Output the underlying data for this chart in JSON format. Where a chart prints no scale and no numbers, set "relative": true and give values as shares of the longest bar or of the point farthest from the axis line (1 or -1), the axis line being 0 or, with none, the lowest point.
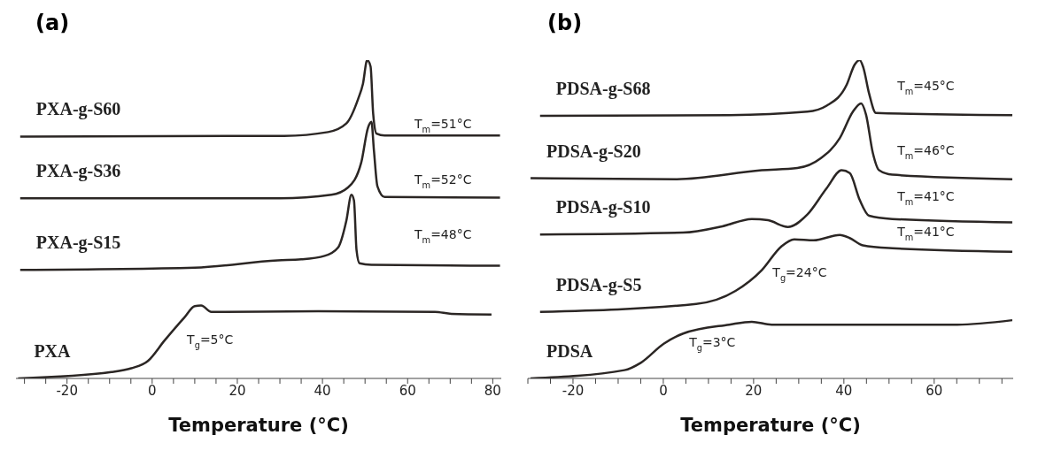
{
  "chart_data": [
    {
      "type": "line",
      "title": "(a)",
      "xlabel": "Temperature (°C)",
      "relative": true,
      "tick_labels": "x",
      "legend": false,
      "grid": false,
      "marker": "none",
      "line_style": "solid",
      "xlim": [
        -32,
        82
      ],
      "xticks": [
        {
          "value": -30,
          "label": null
        },
        {
          "value": -25,
          "label": null
        },
        -20,
        {
          "value": -15,
          "label": null
        },
        {
          "value": -10,
          "label": null
        },
        {
          "value": -5,
          "label": null
        },
        0,
        {
          "value": 5,
          "label": null
        },
        {
          "value": 10,
          "label": null
        },
        {
          "value": 15,
          "label": null
        },
        20,
        {
          "value": 25,
          "label": null
        },
        {
          "value": 30,
          "label": null
        },
        {
          "value": 35,
          "label": null
        },
        40,
        {
          "value": 45,
          "label": null
        },
        {
          "value": 50,
          "label": null
        },
        {
          "value": 55,
          "label": null
        },
        60,
        {
          "value": 65,
          "label": null
        },
        {
          "value": 70,
          "label": null
        },
        {
          "value": 75,
          "label": null
        },
        80
      ],
      "series": [
        {
          "name": "PXA-g-S60",
          "color": "#2b2624",
          "x": [
            -31,
            31,
            41.3,
            45.6,
            48.4,
            49.5,
            50.5,
            51.3,
            51.9,
            52.7,
            54.6,
            81.7
          ],
          "values": [
            0.76,
            0.762,
            0.774,
            0.801,
            0.879,
            0.925,
            1,
            0.98,
            0.833,
            0.769,
            0.763,
            0.763
          ]
        },
        {
          "name": "PXA-g-S36",
          "color": "#2b2624",
          "x": [
            -31,
            30,
            42.1,
            46,
            49.1,
            50.7,
            51.5,
            52.1,
            52.9,
            54.6,
            81.7
          ],
          "values": [
            0.566,
            0.566,
            0.577,
            0.6,
            0.678,
            0.788,
            0.806,
            0.714,
            0.604,
            0.57,
            0.568
          ]
        },
        {
          "name": "PXA-g-S15",
          "color": "#2b2624",
          "x": [
            -31,
            10,
            29.5,
            35,
            40.5,
            43.7,
            45.6,
            46.8,
            47.4,
            48,
            48.7,
            51.5,
            81.7
          ],
          "values": [
            0.341,
            0.348,
            0.371,
            0.374,
            0.385,
            0.412,
            0.495,
            0.577,
            0.559,
            0.403,
            0.362,
            0.357,
            0.354
          ]
        },
        {
          "name": "PXA",
          "color": "#2b2624",
          "x": [
            -31.5,
            -9.6,
            -4.9,
            -1,
            2.9,
            7.6,
            10,
            11.5,
            13.9,
            39,
            66.4,
            70.3,
            79.7
          ],
          "values": [
            0,
            0.02,
            0.032,
            0.055,
            0.119,
            0.192,
            0.227,
            0.229,
            0.209,
            0.211,
            0.209,
            0.203,
            0.201
          ]
        }
      ],
      "annotations": [
        "T$_{m}$=51°C",
        "T$_{m}$=52°C",
        "T$_{m}$=48°C",
        "T$_{g}$=5°C"
      ]
    },
    {
      "type": "line",
      "title": "(b)",
      "xlabel": "Temperature (°C)",
      "relative": true,
      "tick_labels": "x",
      "legend": false,
      "grid": false,
      "marker": "none",
      "line_style": "solid",
      "xlim": [
        -30,
        77.5
      ],
      "xticks": [
        {
          "value": -30,
          "label": null
        },
        {
          "value": -25,
          "label": null
        },
        -20,
        {
          "value": -15,
          "label": null
        },
        {
          "value": -10,
          "label": null
        },
        {
          "value": -5,
          "label": null
        },
        0,
        {
          "value": 5,
          "label": null
        },
        {
          "value": 10,
          "label": null
        },
        {
          "value": 15,
          "label": null
        },
        20,
        {
          "value": 25,
          "label": null
        },
        {
          "value": 30,
          "label": null
        },
        {
          "value": 35,
          "label": null
        },
        40,
        {
          "value": 45,
          "label": null
        },
        {
          "value": 50,
          "label": null
        },
        {
          "value": 55,
          "label": null
        },
        60,
        {
          "value": 65,
          "label": null
        },
        {
          "value": 70,
          "label": null
        },
        {
          "value": 75,
          "label": null
        }
      ],
      "series": [
        {
          "name": "PDSA-g-S68",
          "color": "#2b2624",
          "x": [
            -27.3,
            14.6,
            31.9,
            36.2,
            40.6,
            42.4,
            43.5,
            44.3,
            45.6,
            47.1,
            77.3
          ],
          "values": [
            0.825,
            0.827,
            0.838,
            0.857,
            0.922,
            0.986,
            1,
            0.977,
            0.894,
            0.834,
            0.827
          ]
        },
        {
          "name": "PDSA-g-S20",
          "color": "#2b2624",
          "x": [
            -29.4,
            3,
            21.8,
            29.7,
            34.8,
            39.1,
            42,
            43.8,
            44.9,
            46.4,
            47.8,
            50.7,
            77.3
          ],
          "values": [
            0.629,
            0.626,
            0.654,
            0.661,
            0.691,
            0.755,
            0.838,
            0.864,
            0.829,
            0.709,
            0.654,
            0.64,
            0.626
          ]
        },
        {
          "name": "PDSA-g-S10",
          "color": "#2b2624",
          "x": [
            -27.3,
            4.4,
            13.1,
            19.6,
            23.2,
            27.6,
            31.9,
            36.2,
            39.5,
            41.3,
            43.5,
            45.6,
            50.7,
            77.3
          ],
          "values": [
            0.452,
            0.458,
            0.478,
            0.501,
            0.497,
            0.476,
            0.515,
            0.598,
            0.654,
            0.645,
            0.561,
            0.511,
            0.501,
            0.49
          ]
        },
        {
          "name": "PDSA-g-S5",
          "color": "#2b2624",
          "x": [
            -27.3,
            7.3,
            16,
            21.8,
            26.1,
            29,
            33.3,
            39.1,
            41.3,
            44.2,
            50.7,
            77.3
          ],
          "values": [
            0.209,
            0.234,
            0.275,
            0.34,
            0.414,
            0.437,
            0.434,
            0.451,
            0.441,
            0.418,
            0.409,
            0.398
          ]
        },
        {
          "name": "PDSA",
          "color": "#2b2624",
          "x": [
            -29.4,
            -8.6,
            -5,
            0.1,
            4.4,
            14.6,
            19.6,
            24,
            65.1,
            77.3
          ],
          "values": [
            0,
            0.026,
            0.049,
            0.109,
            0.141,
            0.169,
            0.178,
            0.169,
            0.169,
            0.183
          ]
        }
      ],
      "annotations": [
        "T$_{m}$=45°C",
        "T$_{m}$=46°C",
        "T$_{m}$=41°C",
        "T$_{m}$=41°C",
        "T$_{g}$=24°C",
        "T$_{g}$=3°C"
      ]
    }
  ]
}
